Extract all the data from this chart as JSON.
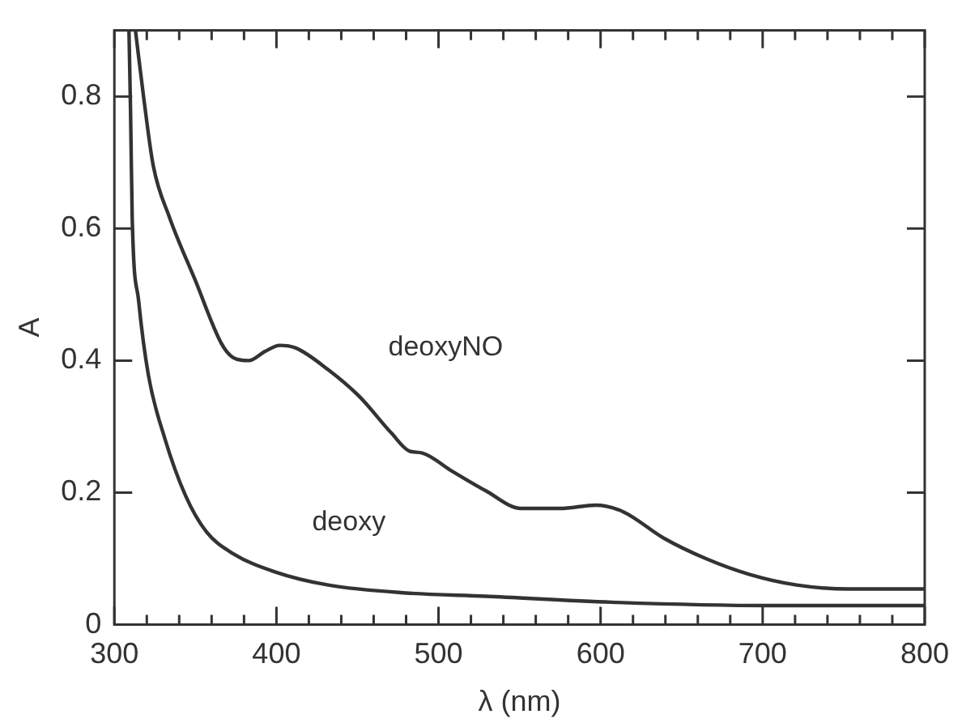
{
  "chart_data": {
    "type": "line",
    "xlabel": "λ (nm)",
    "ylabel": "A",
    "xlim": [
      300,
      800
    ],
    "ylim": [
      0,
      0.9
    ],
    "xticks": [
      300,
      {
        "value": 320,
        "label": null
      },
      {
        "value": 340,
        "label": null
      },
      {
        "value": 360,
        "label": null
      },
      {
        "value": 380,
        "label": null
      },
      400,
      {
        "value": 420,
        "label": null
      },
      {
        "value": 440,
        "label": null
      },
      {
        "value": 460,
        "label": null
      },
      {
        "value": 480,
        "label": null
      },
      500,
      {
        "value": 520,
        "label": null
      },
      {
        "value": 540,
        "label": null
      },
      {
        "value": 560,
        "label": null
      },
      {
        "value": 580,
        "label": null
      },
      600,
      {
        "value": 620,
        "label": null
      },
      {
        "value": 640,
        "label": null
      },
      {
        "value": 660,
        "label": null
      },
      {
        "value": 680,
        "label": null
      },
      700,
      {
        "value": 720,
        "label": null
      },
      {
        "value": 740,
        "label": null
      },
      {
        "value": 760,
        "label": null
      },
      {
        "value": 780,
        "label": null
      },
      800
    ],
    "yticks": [
      0,
      0.2,
      0.4,
      0.6,
      0.8
    ],
    "grid": false,
    "legend": false,
    "marker": "none",
    "line_style": "solid",
    "series": [
      {
        "name": "deoxyNO",
        "color": "#333333",
        "x": [
          313,
          318,
          324,
          334,
          350,
          366,
          373,
          383,
          393,
          402,
          412,
          432,
          451,
          471,
          482,
          490,
          508,
          529,
          551,
          575,
          597,
          614,
          639,
          665,
          692,
          721,
          753,
          799
        ],
        "values": [
          0.9,
          0.8,
          0.695,
          0.617,
          0.521,
          0.426,
          0.405,
          0.4,
          0.414,
          0.423,
          0.419,
          0.386,
          0.346,
          0.29,
          0.263,
          0.26,
          0.233,
          0.203,
          0.176,
          0.176,
          0.181,
          0.171,
          0.131,
          0.1,
          0.076,
          0.06,
          0.054,
          0.054
        ]
      },
      {
        "name": "deoxy",
        "color": "#333333",
        "x": [
          309,
          310,
          311,
          315,
          321,
          331,
          344,
          357,
          373,
          399,
          432,
          480,
          529,
          607,
          704,
          799
        ],
        "values": [
          0.9,
          0.775,
          0.617,
          0.49,
          0.378,
          0.283,
          0.195,
          0.14,
          0.108,
          0.08,
          0.06,
          0.048,
          0.043,
          0.034,
          0.029,
          0.029
        ]
      }
    ]
  }
}
